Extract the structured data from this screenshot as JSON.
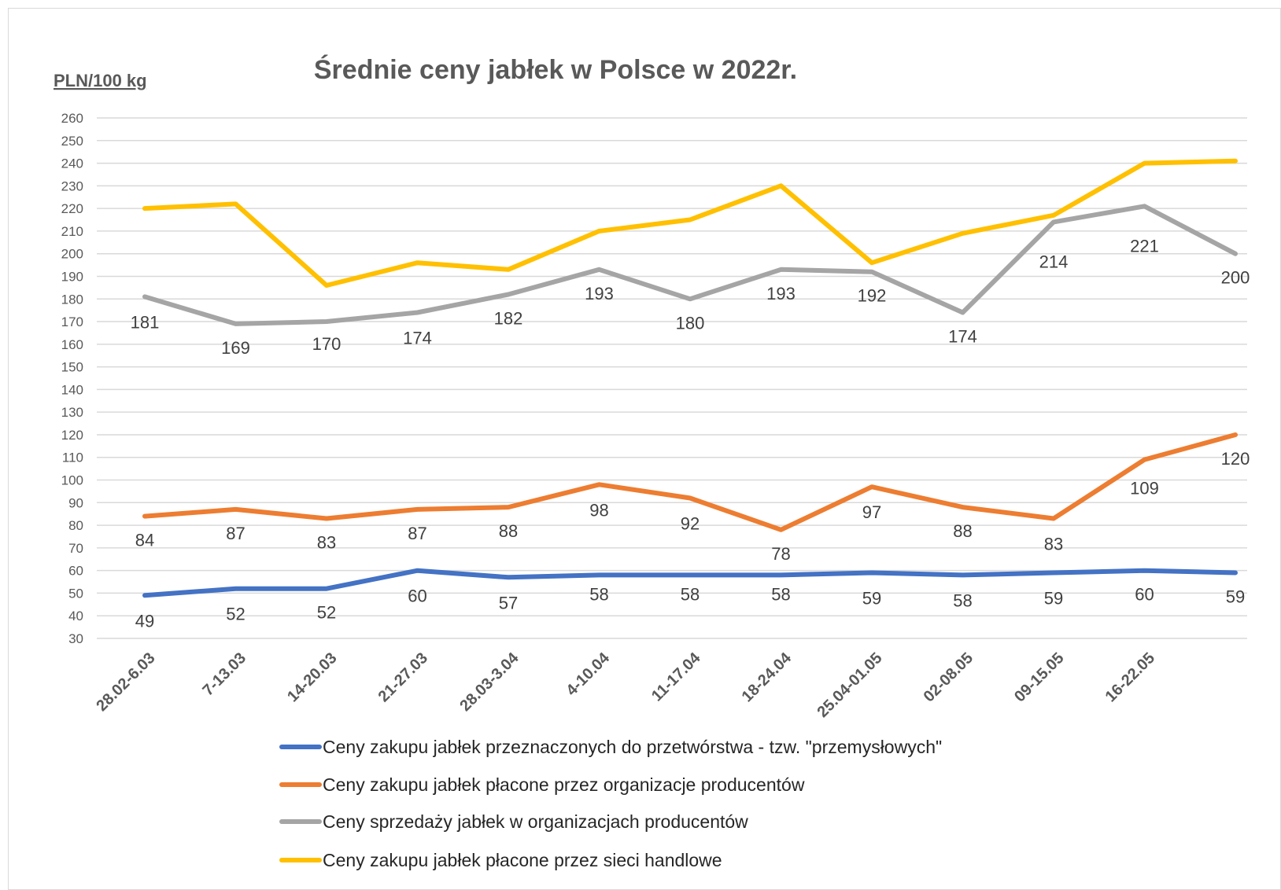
{
  "chart_data": {
    "type": "line",
    "title": "Średnie ceny jabłek w Polsce w 2022r.",
    "ylabel": "PLN/100 kg",
    "xlabel": "",
    "ylim": [
      30,
      260
    ],
    "y_ticks": [
      30,
      40,
      50,
      60,
      70,
      80,
      90,
      100,
      110,
      120,
      130,
      140,
      150,
      160,
      170,
      180,
      190,
      200,
      210,
      220,
      230,
      240,
      250,
      260
    ],
    "categories": [
      "28.02-6.03",
      "7-13.03",
      "14-20.03",
      "21-27.03",
      "28.03-3.04",
      "4-10.04",
      "11-17.04",
      "18-24.04",
      "25.04-01.05",
      "02-08.05",
      "09-15.05",
      "16-22.05",
      ""
    ],
    "grid": true,
    "legend_position": "bottom",
    "series": [
      {
        "name": "Ceny zakupu jabłek przeznaczonych do przetwórstwa - tzw. \"przemysłowych\"",
        "color": "#4472C4",
        "values": [
          49,
          52,
          52,
          60,
          57,
          58,
          58,
          58,
          59,
          58,
          59,
          60,
          59
        ],
        "labels_shown": true
      },
      {
        "name": "Ceny zakupu jabłek płacone przez organizacje  producentów",
        "color": "#ED7D31",
        "values": [
          84,
          87,
          83,
          87,
          88,
          98,
          92,
          78,
          97,
          88,
          83,
          109,
          120
        ],
        "labels_shown": true
      },
      {
        "name": "Ceny sprzedaży jabłek w organizacjach  producentów",
        "color": "#A5A5A5",
        "values": [
          181,
          169,
          170,
          174,
          182,
          193,
          180,
          193,
          192,
          174,
          214,
          221,
          200
        ],
        "labels_shown": true
      },
      {
        "name": "Ceny zakupu jabłek płacone przez sieci handlowe",
        "color": "#FFC000",
        "values": [
          220,
          222,
          186,
          196,
          193,
          210,
          215,
          230,
          196,
          209,
          217,
          240,
          241
        ],
        "labels_shown": false
      }
    ]
  }
}
